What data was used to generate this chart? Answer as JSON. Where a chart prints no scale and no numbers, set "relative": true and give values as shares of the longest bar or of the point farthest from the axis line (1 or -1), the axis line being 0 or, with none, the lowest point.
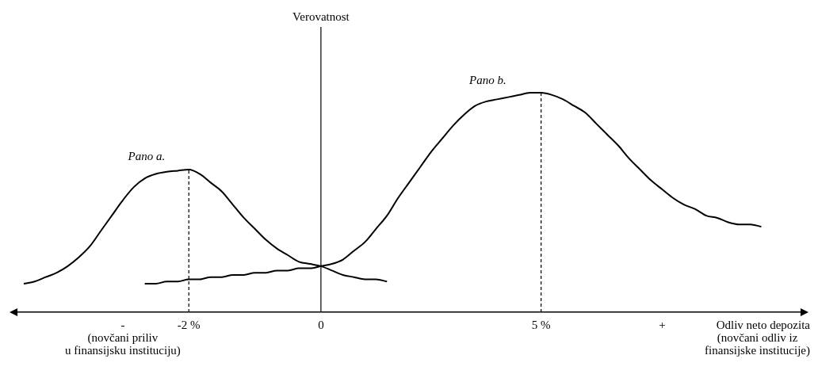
{
  "chart_data": {
    "type": "line",
    "relative": true,
    "xlabel": "Odliv neto depozita",
    "annotations": [
      "Verovatnost",
      "(novčani priliv\nu finansijsku instituciju)",
      "(novčani odliv iz\nfinansijske institucije)"
    ],
    "categories": [
      null,
      null,
      null,
      null,
      null,
      null,
      null,
      null,
      null,
      null,
      "-",
      null,
      null,
      null,
      null,
      null,
      "-2 %",
      null,
      null,
      null,
      null,
      null,
      null,
      null,
      null,
      null,
      null,
      null,
      "0",
      null,
      null,
      null,
      null,
      null,
      null,
      null,
      null,
      null,
      null,
      null,
      null,
      null,
      null,
      null,
      null,
      null,
      null,
      null,
      "5 %",
      null,
      null,
      null,
      null,
      null,
      null,
      null,
      null,
      null,
      null,
      "+",
      null,
      null,
      null,
      null,
      null,
      null,
      null,
      null,
      null,
      null,
      null,
      null,
      null
    ],
    "series": [
      {
        "name": "Pano a.",
        "color": "#000000",
        "values": [
          null,
          0.13,
          0.14,
          0.16,
          0.18,
          0.21,
          0.25,
          0.3,
          0.37,
          0.44,
          0.51,
          0.57,
          0.61,
          0.63,
          0.64,
          0.645,
          0.65,
          0.63,
          0.59,
          0.55,
          0.49,
          0.43,
          0.38,
          0.33,
          0.29,
          0.26,
          0.23,
          0.22,
          0.21,
          0.19,
          0.17,
          0.16,
          0.15,
          0.15,
          0.14,
          null,
          null,
          null,
          null,
          null,
          null,
          null,
          null,
          null,
          null,
          null,
          null,
          null,
          null,
          null,
          null,
          null,
          null,
          null,
          null,
          null,
          null,
          null,
          null,
          null,
          null,
          null,
          null,
          null,
          null,
          null,
          null,
          null,
          null,
          null,
          null,
          null,
          null
        ]
      },
      {
        "name": "Pano b.",
        "color": "#000000",
        "values": [
          null,
          null,
          null,
          null,
          null,
          null,
          null,
          null,
          null,
          null,
          null,
          null,
          0.13,
          0.13,
          0.14,
          0.14,
          0.15,
          0.15,
          0.16,
          0.16,
          0.17,
          0.17,
          0.18,
          0.18,
          0.19,
          0.19,
          0.2,
          0.2,
          0.21,
          0.22,
          0.24,
          0.28,
          0.32,
          0.38,
          0.44,
          0.52,
          0.59,
          0.66,
          0.73,
          0.79,
          0.85,
          0.9,
          0.94,
          0.96,
          0.97,
          0.98,
          0.99,
          1.0,
          1.0,
          0.99,
          0.97,
          0.94,
          0.91,
          0.86,
          0.81,
          0.76,
          0.7,
          0.65,
          0.6,
          0.56,
          0.52,
          0.49,
          0.47,
          0.44,
          0.43,
          0.41,
          0.4,
          0.4,
          0.39,
          null,
          null,
          null,
          null
        ]
      }
    ],
    "ref_lines": [
      {
        "axis": "x",
        "value": "-2 %",
        "line_style": "dashed"
      },
      {
        "axis": "x",
        "value": "0",
        "line_style": "solid"
      },
      {
        "axis": "x",
        "value": "5 %",
        "line_style": "dashed"
      }
    ],
    "marker": "none",
    "line_style": "solid",
    "legend": false,
    "grid": false,
    "tick_labels": "x"
  }
}
